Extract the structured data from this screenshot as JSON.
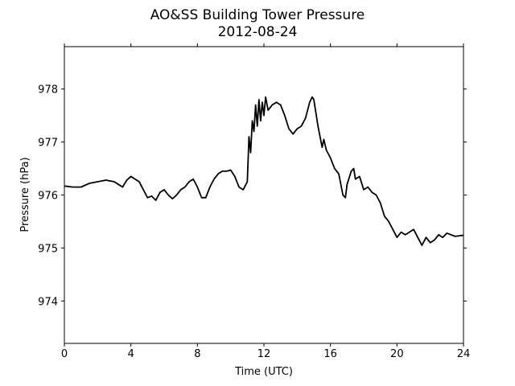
{
  "chart_data": {
    "type": "line",
    "title": "AO&SS Building Tower Pressure",
    "subtitle": "2012-08-24",
    "x_label": "Time (UTC)",
    "y_label": "Pressure (hPa)",
    "xlim": [
      0,
      24
    ],
    "xticks": [
      0,
      4,
      8,
      12,
      16,
      20,
      24
    ],
    "ylim": [
      973.2,
      978.8
    ],
    "yticks": [
      974,
      975,
      976,
      977,
      978
    ],
    "x": [
      0,
      0.5,
      1,
      1.5,
      2,
      2.5,
      3,
      3.25,
      3.5,
      3.75,
      4,
      4.25,
      4.5,
      4.75,
      5,
      5.25,
      5.5,
      5.75,
      6,
      6.25,
      6.5,
      6.75,
      7,
      7.25,
      7.5,
      7.75,
      8,
      8.25,
      8.5,
      8.75,
      9,
      9.25,
      9.5,
      9.75,
      10,
      10.25,
      10.5,
      10.75,
      11,
      11.1,
      11.2,
      11.3,
      11.4,
      11.5,
      11.6,
      11.7,
      11.8,
      11.9,
      12,
      12.1,
      12.25,
      12.5,
      12.75,
      13,
      13.25,
      13.5,
      13.75,
      14,
      14.25,
      14.5,
      14.75,
      14.9,
      15,
      15.25,
      15.5,
      15.6,
      15.75,
      16,
      16.25,
      16.5,
      16.75,
      16.9,
      17,
      17.25,
      17.4,
      17.5,
      17.75,
      18,
      18.25,
      18.5,
      18.75,
      19,
      19.25,
      19.5,
      19.75,
      20,
      20.25,
      20.5,
      20.75,
      21,
      21.25,
      21.5,
      21.75,
      22,
      22.25,
      22.5,
      22.75,
      23,
      23.25,
      23.5,
      24
    ],
    "series": [
      {
        "color": "#000000",
        "values": [
          976.17,
          976.15,
          976.15,
          976.22,
          976.25,
          976.28,
          976.25,
          976.2,
          976.15,
          976.28,
          976.35,
          976.3,
          976.25,
          976.1,
          975.95,
          975.98,
          975.9,
          976.05,
          976.1,
          976.0,
          975.93,
          976.0,
          976.1,
          976.15,
          976.25,
          976.3,
          976.15,
          975.95,
          975.95,
          976.15,
          976.3,
          976.4,
          976.45,
          976.45,
          976.47,
          976.35,
          976.15,
          976.1,
          976.25,
          977.1,
          976.8,
          977.4,
          977.2,
          977.7,
          977.3,
          977.8,
          977.4,
          977.75,
          977.5,
          977.85,
          977.6,
          977.7,
          977.75,
          977.7,
          977.5,
          977.25,
          977.15,
          977.25,
          977.3,
          977.45,
          977.75,
          977.85,
          977.8,
          977.3,
          976.9,
          977.05,
          976.85,
          976.7,
          976.5,
          976.4,
          976.0,
          975.95,
          976.2,
          976.45,
          976.5,
          976.3,
          976.35,
          976.1,
          976.15,
          976.05,
          976.0,
          975.85,
          975.6,
          975.5,
          975.35,
          975.2,
          975.3,
          975.25,
          975.3,
          975.35,
          975.2,
          975.05,
          975.2,
          975.1,
          975.15,
          975.25,
          975.2,
          975.28,
          975.25,
          975.22,
          975.24
        ]
      }
    ]
  }
}
